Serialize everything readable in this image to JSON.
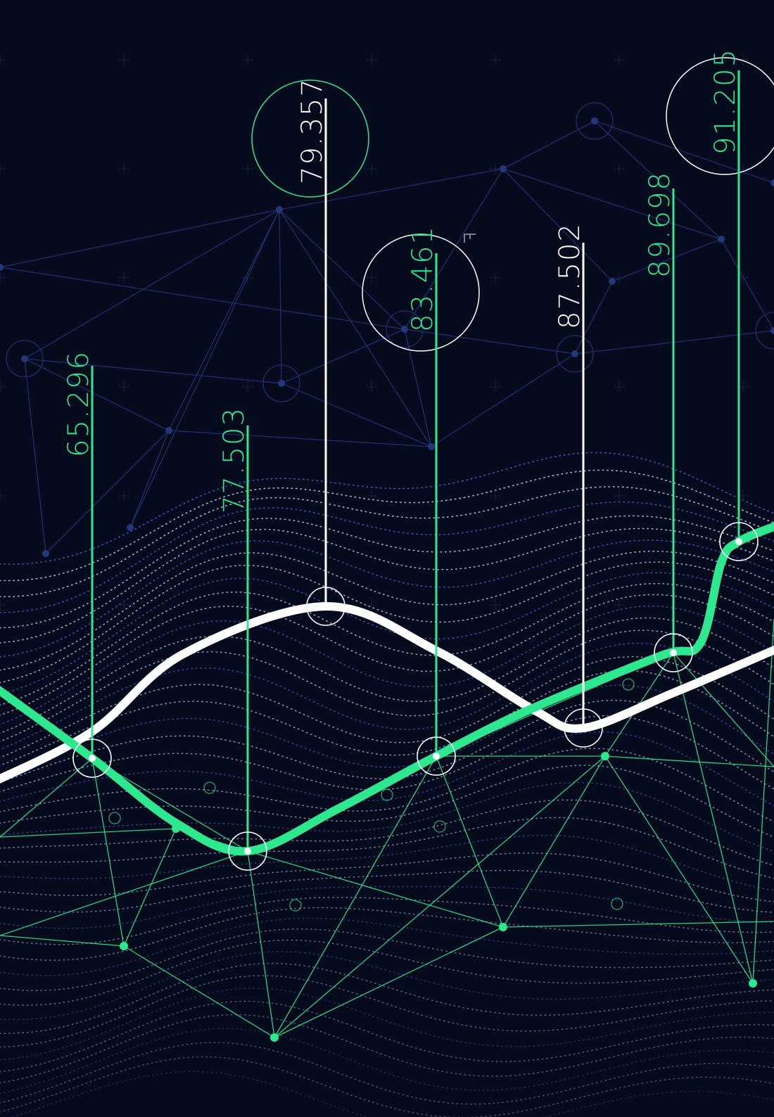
{
  "callouts": [
    "65.296",
    "77.503",
    "79.357",
    "83.461",
    "87.502",
    "89.698",
    "91.205"
  ]
}
